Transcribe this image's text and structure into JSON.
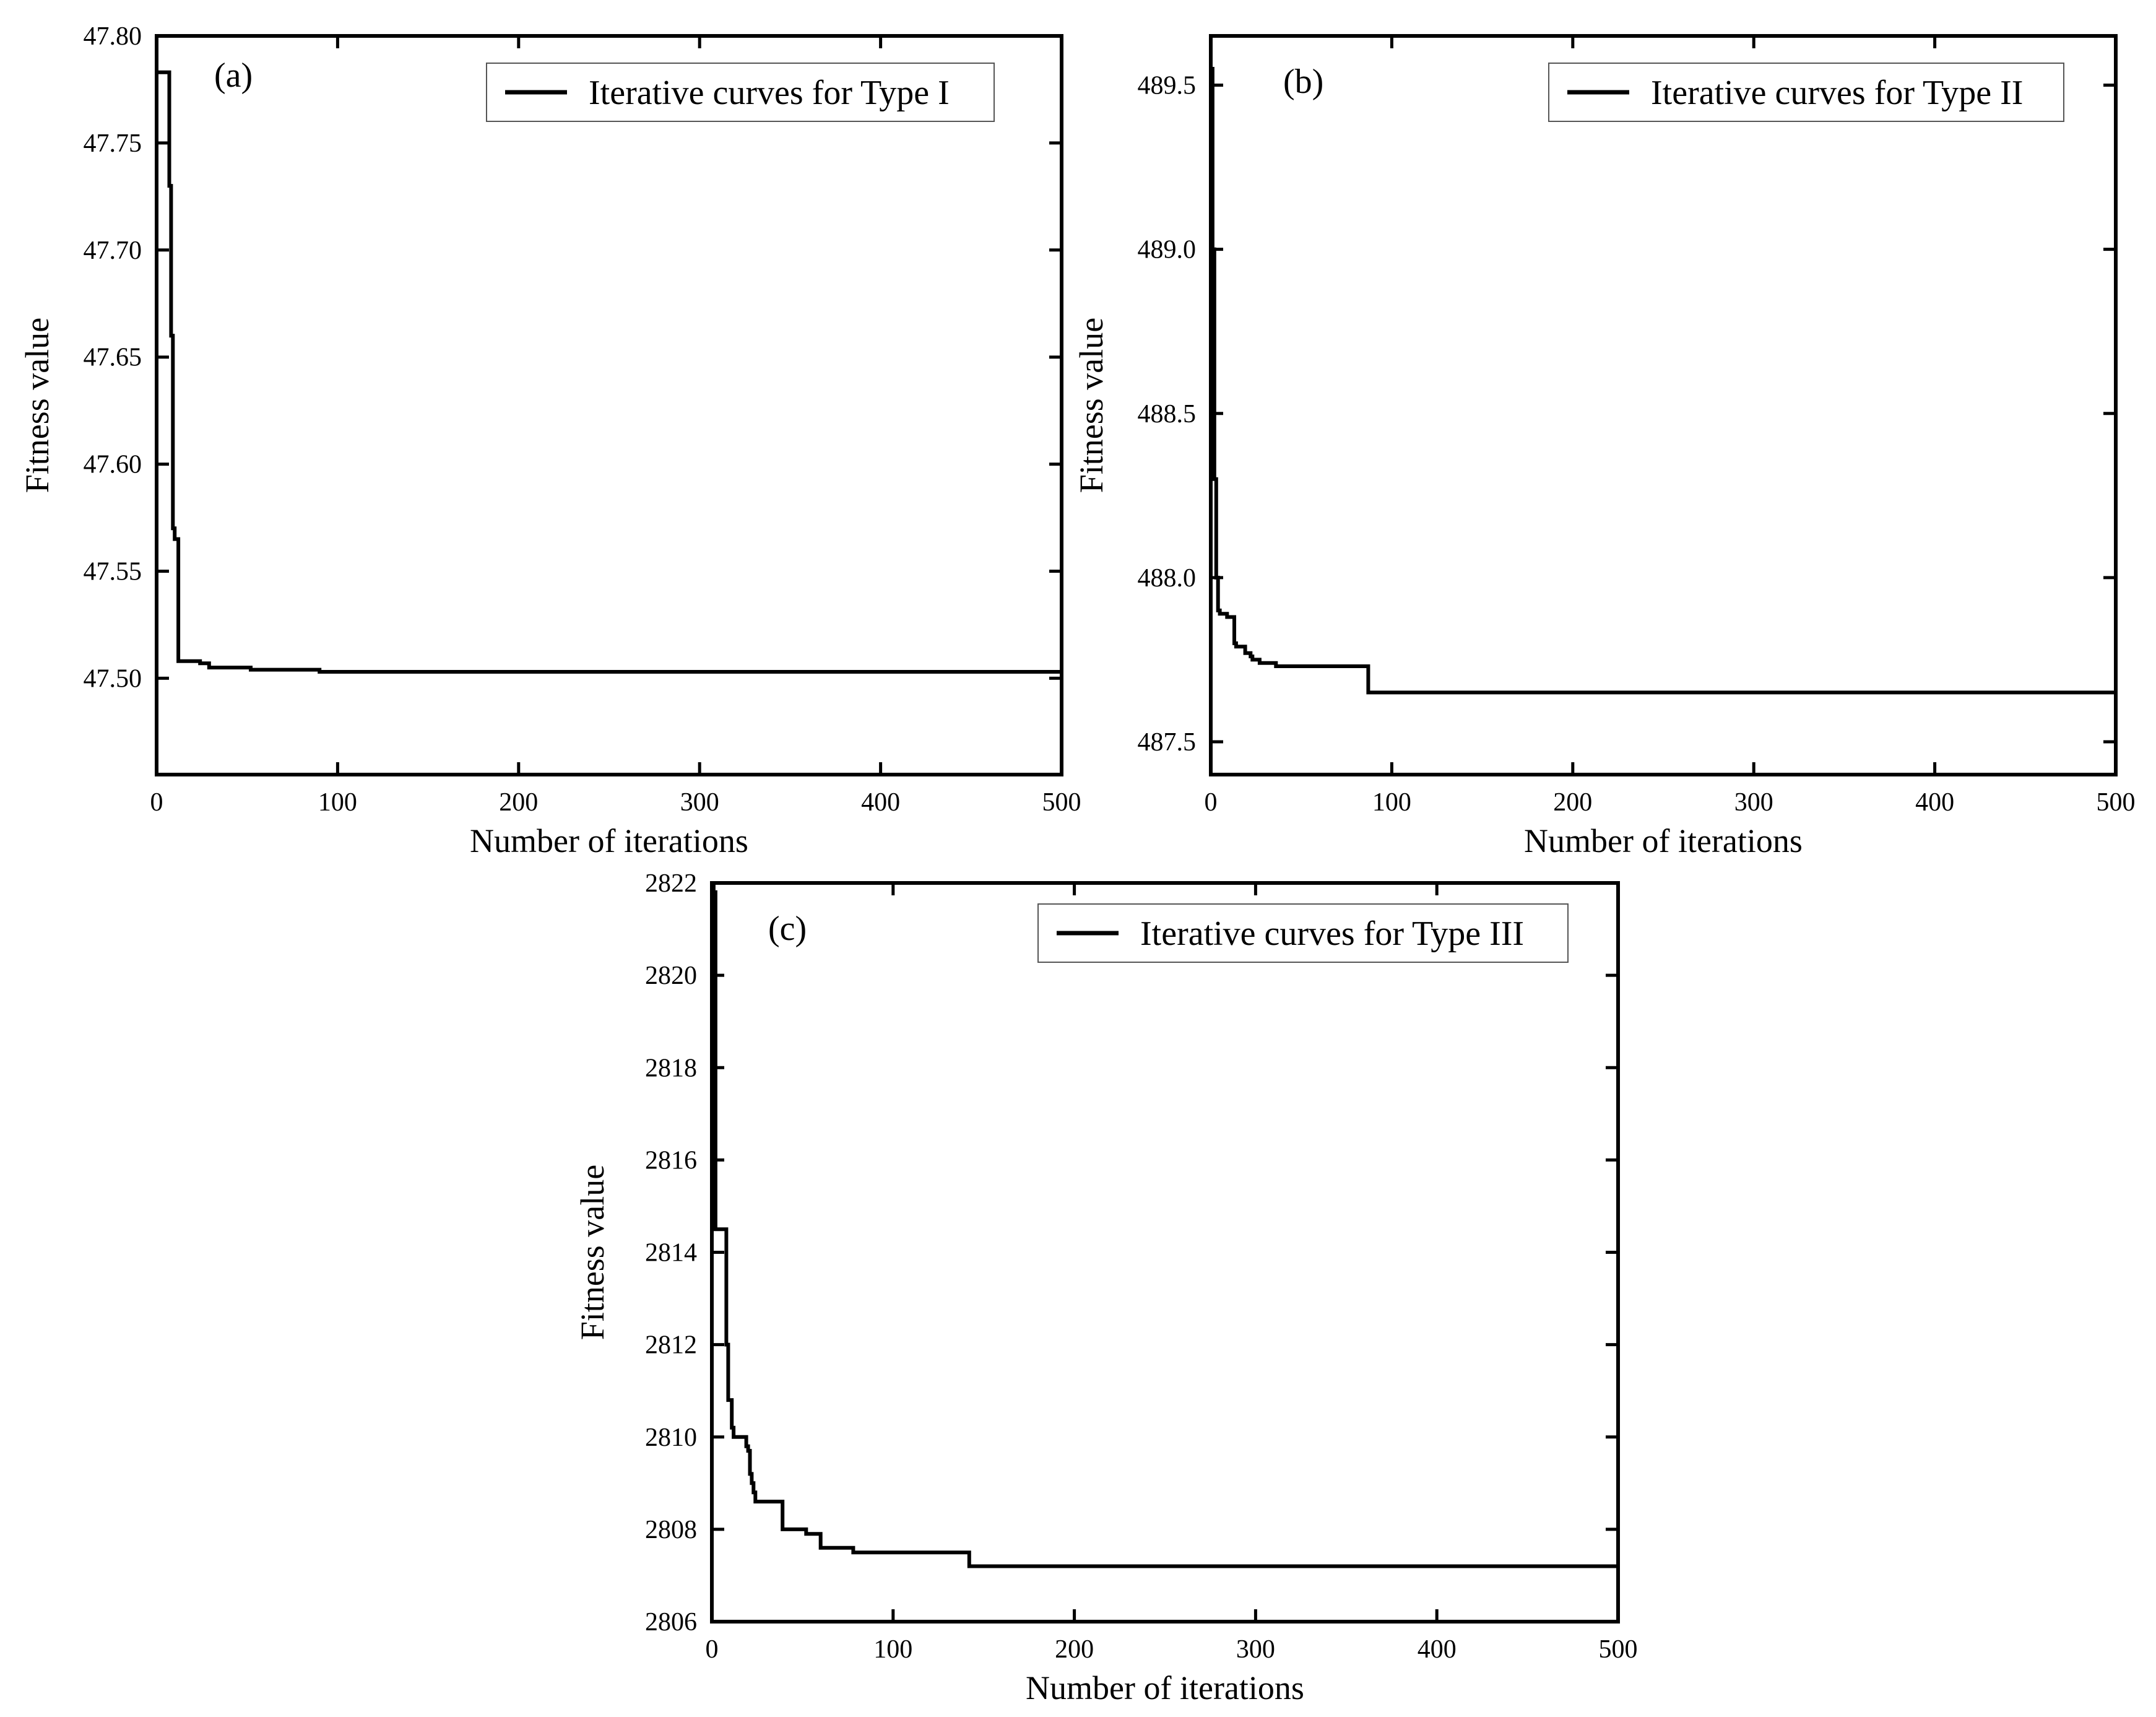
{
  "chart_data": [
    {
      "type": "line",
      "panel_label": "(a)",
      "xlabel": "Number of iterations",
      "ylabel": "Fitness value",
      "xlim": [
        0,
        500
      ],
      "ylim": [
        47.455,
        47.8
      ],
      "xticks": [
        0,
        100,
        200,
        300,
        400,
        500
      ],
      "xtick_labels": [
        "0",
        "100",
        "200",
        "300",
        "400",
        "500"
      ],
      "yticks": [
        47.5,
        47.55,
        47.6,
        47.65,
        47.7,
        47.75,
        47.8
      ],
      "ytick_labels": [
        "47.50",
        "47.55",
        "47.60",
        "47.65",
        "47.70",
        "47.75",
        "47.80"
      ],
      "legend_position": "top-right",
      "series": [
        {
          "name": "Iterative curves for Type I",
          "x": [
            0,
            1,
            2,
            3,
            4,
            5,
            6,
            7,
            8,
            9,
            10,
            11,
            12,
            13,
            14,
            22,
            24,
            25,
            27,
            29,
            30,
            35,
            40,
            45,
            50,
            52,
            60,
            70,
            80,
            90,
            100,
            200,
            300,
            400,
            500
          ],
          "y": [
            47.783,
            47.783,
            47.783,
            47.783,
            47.783,
            47.783,
            47.783,
            47.73,
            47.66,
            47.57,
            47.565,
            47.565,
            47.508,
            47.508,
            47.508,
            47.508,
            47.507,
            47.507,
            47.507,
            47.505,
            47.505,
            47.505,
            47.505,
            47.505,
            47.505,
            47.504,
            47.504,
            47.504,
            47.504,
            47.503,
            47.503,
            47.503,
            47.503,
            47.503,
            47.503
          ]
        }
      ]
    },
    {
      "type": "line",
      "panel_label": "(b)",
      "xlabel": "Number of iterations",
      "ylabel": "Fitness value",
      "xlim": [
        0,
        500
      ],
      "ylim": [
        487.4,
        489.65
      ],
      "xticks": [
        0,
        100,
        200,
        300,
        400,
        500
      ],
      "xtick_labels": [
        "0",
        "100",
        "200",
        "300",
        "400",
        "500"
      ],
      "yticks": [
        487.5,
        488.0,
        488.5,
        489.0,
        489.5
      ],
      "ytick_labels": [
        "487.5",
        "488.0",
        "488.5",
        "489.0",
        "489.5"
      ],
      "legend_position": "top-right",
      "series": [
        {
          "name": "Iterative curves for Type II",
          "x": [
            0,
            1,
            2,
            3,
            4,
            5,
            8,
            9,
            12,
            13,
            14,
            18,
            19,
            22,
            23,
            26,
            27,
            35,
            36,
            50,
            60,
            70,
            80,
            85,
            86,
            87,
            100,
            200,
            300,
            400,
            500
          ],
          "y": [
            489.55,
            489.0,
            488.3,
            488.0,
            487.9,
            487.89,
            487.89,
            487.88,
            487.88,
            487.8,
            487.79,
            487.79,
            487.77,
            487.76,
            487.75,
            487.75,
            487.74,
            487.74,
            487.73,
            487.73,
            487.73,
            487.73,
            487.73,
            487.73,
            487.73,
            487.65,
            487.65,
            487.65,
            487.65,
            487.65,
            487.65
          ]
        }
      ]
    },
    {
      "type": "line",
      "panel_label": "(c)",
      "xlabel": "Number of iterations",
      "ylabel": "Fitness value",
      "xlim": [
        0,
        500
      ],
      "ylim": [
        2806,
        2822
      ],
      "xticks": [
        0,
        100,
        200,
        300,
        400,
        500
      ],
      "xtick_labels": [
        "0",
        "100",
        "200",
        "300",
        "400",
        "500"
      ],
      "yticks": [
        2806,
        2808,
        2810,
        2812,
        2814,
        2816,
        2818,
        2820,
        2822
      ],
      "ytick_labels": [
        "2806",
        "2808",
        "2810",
        "2812",
        "2814",
        "2816",
        "2818",
        "2820",
        "2822"
      ],
      "legend_position": "top-right",
      "series": [
        {
          "name": "Iterative curves for Type III",
          "x": [
            0,
            1,
            2,
            3,
            7,
            8,
            9,
            10,
            11,
            12,
            13,
            18,
            19,
            20,
            21,
            22,
            23,
            24,
            25,
            38,
            39,
            40,
            50,
            52,
            58,
            60,
            68,
            70,
            75,
            78,
            90,
            100,
            120,
            140,
            142,
            143,
            200,
            300,
            400,
            500
          ],
          "y": [
            2822,
            2821.8,
            2814.5,
            2814.5,
            2814.5,
            2812,
            2810.8,
            2810.8,
            2810.2,
            2810.0,
            2810.0,
            2810.0,
            2809.8,
            2809.7,
            2809.2,
            2809.0,
            2808.8,
            2808.6,
            2808.6,
            2808.6,
            2808.0,
            2808.0,
            2808.0,
            2807.9,
            2807.9,
            2807.6,
            2807.6,
            2807.6,
            2807.6,
            2807.5,
            2807.5,
            2807.5,
            2807.5,
            2807.5,
            2807.2,
            2807.2,
            2807.2,
            2807.2,
            2807.2,
            2807.2
          ]
        }
      ]
    }
  ]
}
